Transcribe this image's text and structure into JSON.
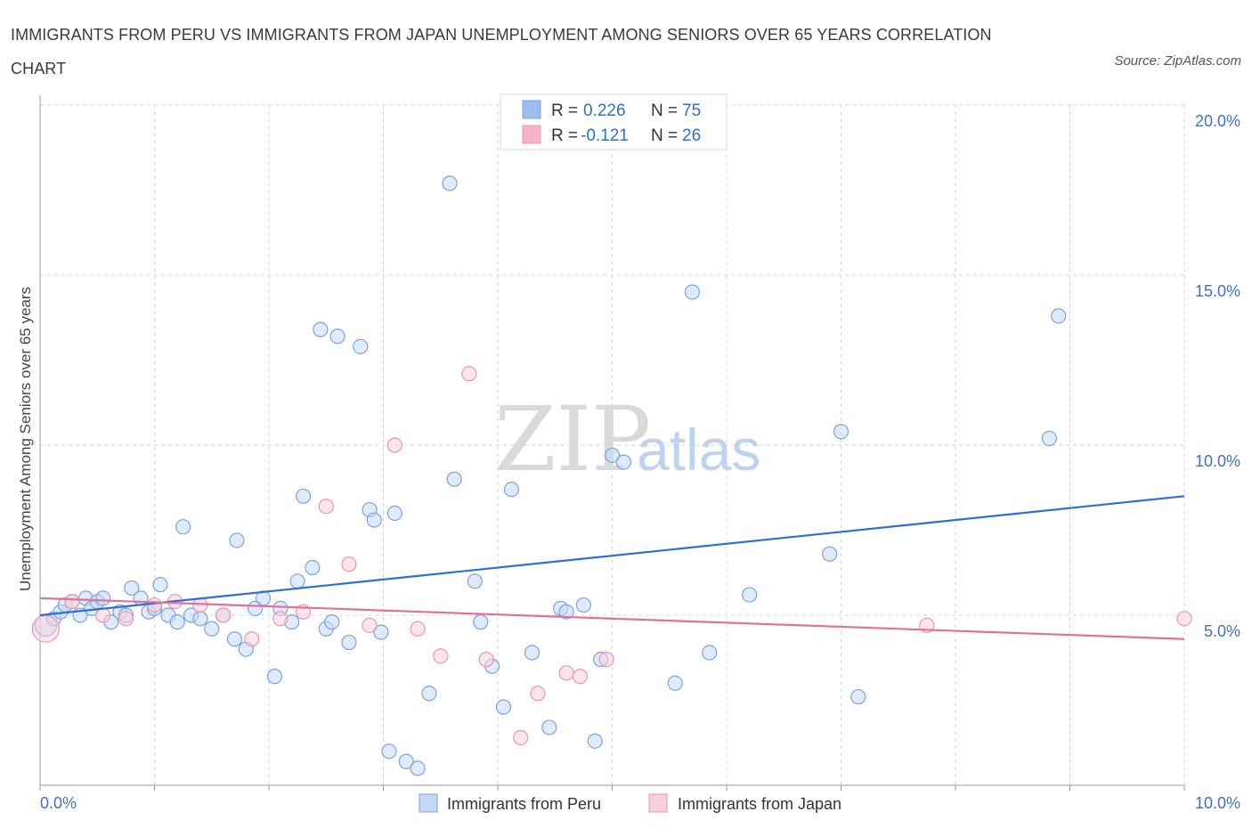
{
  "title": "IMMIGRANTS FROM PERU VS IMMIGRANTS FROM JAPAN UNEMPLOYMENT AMONG SENIORS OVER 65 YEARS CORRELATION CHART",
  "source": "Source: ZipAtlas.com",
  "watermark": {
    "zip": "ZIP",
    "atlas": "atlas"
  },
  "legend_top": {
    "items": [
      {
        "r_label": "R =",
        "r_value": "0.226",
        "n_label": "N =",
        "n_value": "75",
        "color": "#9dbdf0"
      },
      {
        "r_label": "R =",
        "r_value": "-0.121",
        "n_label": "N =",
        "n_value": "26",
        "color": "#f5b3c8"
      }
    ]
  },
  "legend_bottom": [
    "Immigrants from Peru",
    "Immigrants from Japan"
  ],
  "colors": {
    "peru_fill": "#c5d8f5",
    "peru_stroke": "#7aa3e0",
    "peru_line": "#2f6fd1",
    "japan_fill": "#f9cfdb",
    "japan_stroke": "#ec94b0",
    "japan_line": "#e0719a",
    "axis_text": "#3d72c5",
    "grid": "#d6d6d6"
  },
  "chart_data": {
    "type": "scatter",
    "xlabel": "",
    "ylabel": "Unemployment Among Seniors over 65 years",
    "xlim": [
      0,
      10
    ],
    "ylim": [
      0,
      20
    ],
    "x_tick_labels": [
      "0.0%",
      "10.0%"
    ],
    "y_ticks": [
      5,
      10,
      15,
      20
    ],
    "y_tick_labels": [
      "5.0%",
      "10.0%",
      "15.0%",
      "20.0%"
    ],
    "grid": true,
    "series": [
      {
        "name": "Immigrants from Peru",
        "points": [
          [
            0.05,
            4.7
          ],
          [
            0.12,
            4.9
          ],
          [
            0.18,
            5.1
          ],
          [
            0.22,
            5.3
          ],
          [
            0.28,
            5.4
          ],
          [
            0.35,
            5.0
          ],
          [
            0.4,
            5.5
          ],
          [
            0.45,
            5.2
          ],
          [
            0.5,
            5.4
          ],
          [
            0.55,
            5.5
          ],
          [
            0.62,
            4.8
          ],
          [
            0.7,
            5.1
          ],
          [
            0.75,
            5.0
          ],
          [
            0.8,
            5.8
          ],
          [
            0.88,
            5.5
          ],
          [
            0.95,
            5.1
          ],
          [
            1.0,
            5.2
          ],
          [
            1.05,
            5.9
          ],
          [
            1.12,
            5.0
          ],
          [
            1.2,
            4.8
          ],
          [
            1.25,
            7.6
          ],
          [
            1.32,
            5.0
          ],
          [
            1.4,
            4.9
          ],
          [
            1.5,
            4.6
          ],
          [
            1.6,
            5.0
          ],
          [
            1.7,
            4.3
          ],
          [
            1.72,
            7.2
          ],
          [
            1.8,
            4.0
          ],
          [
            1.88,
            5.2
          ],
          [
            1.95,
            5.5
          ],
          [
            2.05,
            3.2
          ],
          [
            2.1,
            5.2
          ],
          [
            2.2,
            4.8
          ],
          [
            2.25,
            6.0
          ],
          [
            2.3,
            8.5
          ],
          [
            2.38,
            6.4
          ],
          [
            2.45,
            13.4
          ],
          [
            2.5,
            4.6
          ],
          [
            2.55,
            4.8
          ],
          [
            2.6,
            13.2
          ],
          [
            2.7,
            4.2
          ],
          [
            2.8,
            12.9
          ],
          [
            2.88,
            8.1
          ],
          [
            2.92,
            7.8
          ],
          [
            2.98,
            4.5
          ],
          [
            3.05,
            1.0
          ],
          [
            3.1,
            8.0
          ],
          [
            3.2,
            0.7
          ],
          [
            3.3,
            0.5
          ],
          [
            3.4,
            2.7
          ],
          [
            3.58,
            17.7
          ],
          [
            3.62,
            9.0
          ],
          [
            3.8,
            6.0
          ],
          [
            3.85,
            4.8
          ],
          [
            3.95,
            3.5
          ],
          [
            4.05,
            2.3
          ],
          [
            4.12,
            8.7
          ],
          [
            4.3,
            3.9
          ],
          [
            4.45,
            1.7
          ],
          [
            4.55,
            5.2
          ],
          [
            4.6,
            5.1
          ],
          [
            4.75,
            5.3
          ],
          [
            4.85,
            1.3
          ],
          [
            4.9,
            3.7
          ],
          [
            5.0,
            9.7
          ],
          [
            5.1,
            9.5
          ],
          [
            5.55,
            3.0
          ],
          [
            5.7,
            14.5
          ],
          [
            5.85,
            3.9
          ],
          [
            6.2,
            5.6
          ],
          [
            6.9,
            6.8
          ],
          [
            7.0,
            10.4
          ],
          [
            7.15,
            2.6
          ],
          [
            8.82,
            10.2
          ],
          [
            8.9,
            13.8
          ]
        ]
      },
      {
        "name": "Immigrants from Japan",
        "points": [
          [
            0.05,
            4.6
          ],
          [
            0.28,
            5.4
          ],
          [
            0.55,
            5.0
          ],
          [
            0.75,
            4.9
          ],
          [
            1.0,
            5.3
          ],
          [
            1.18,
            5.4
          ],
          [
            1.4,
            5.3
          ],
          [
            1.6,
            5.0
          ],
          [
            1.85,
            4.3
          ],
          [
            2.1,
            4.9
          ],
          [
            2.3,
            5.1
          ],
          [
            2.5,
            8.2
          ],
          [
            2.7,
            6.5
          ],
          [
            2.88,
            4.7
          ],
          [
            3.1,
            10.0
          ],
          [
            3.3,
            4.6
          ],
          [
            3.5,
            3.8
          ],
          [
            3.75,
            12.1
          ],
          [
            3.9,
            3.7
          ],
          [
            4.2,
            1.4
          ],
          [
            4.35,
            2.7
          ],
          [
            4.6,
            3.3
          ],
          [
            4.72,
            3.2
          ],
          [
            4.95,
            3.7
          ],
          [
            7.75,
            4.7
          ],
          [
            10.0,
            4.9
          ]
        ]
      }
    ],
    "trend_lines": [
      {
        "name": "Immigrants from Peru",
        "x": [
          0,
          10
        ],
        "y": [
          5.0,
          8.5
        ]
      },
      {
        "name": "Immigrants from Japan",
        "x": [
          0,
          10
        ],
        "y": [
          5.5,
          4.3
        ]
      }
    ]
  }
}
